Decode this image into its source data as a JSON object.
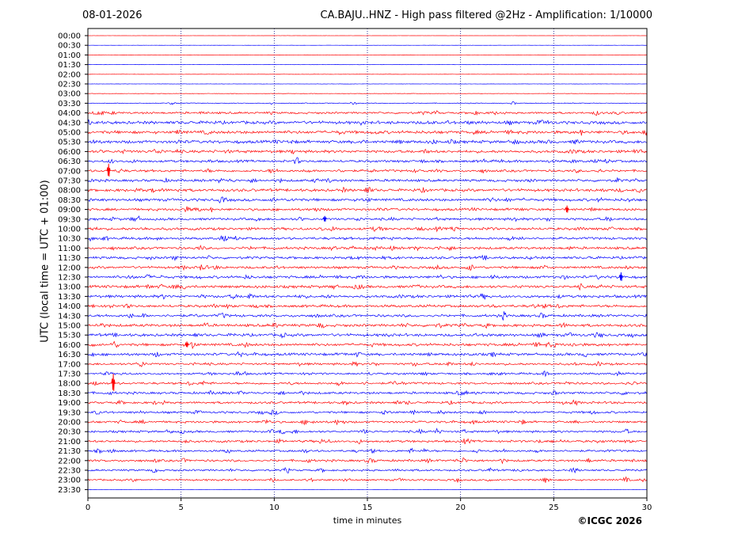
{
  "header": {
    "date": "08-01-2026",
    "title": "CA.BAJU..HNZ - High pass filtered @2Hz - Amplification: 1/10000"
  },
  "footer": {
    "copyright": "©ICGC 2026"
  },
  "colors": {
    "even_row": "#ff0000",
    "odd_row": "#0000ff",
    "grid": "#000080",
    "axis": "#000000"
  },
  "chart_data": {
    "type": "line",
    "xlabel": "time in minutes",
    "ylabel": "UTC (local time = UTC + 01:00)",
    "xlim": [
      0,
      30
    ],
    "xticks": [
      0,
      5,
      10,
      15,
      20,
      25,
      30
    ],
    "grid": "vertical dotted lines at 5-minute intervals",
    "row_labels": [
      "00:00",
      "00:30",
      "01:00",
      "01:30",
      "02:00",
      "02:30",
      "03:00",
      "03:30",
      "04:00",
      "04:30",
      "05:00",
      "05:30",
      "06:00",
      "06:30",
      "07:00",
      "07:30",
      "08:00",
      "08:30",
      "09:00",
      "09:30",
      "10:00",
      "10:30",
      "11:00",
      "11:30",
      "12:00",
      "12:30",
      "13:00",
      "13:30",
      "14:00",
      "14:30",
      "15:00",
      "15:30",
      "16:00",
      "16:30",
      "17:00",
      "17:30",
      "18:00",
      "18:30",
      "19:00",
      "19:30",
      "20:00",
      "20:30",
      "21:00",
      "21:30",
      "22:00",
      "22:30",
      "23:00",
      "23:30"
    ],
    "row_colors": "alternating red (:00) and blue (:30)",
    "noise_level": [
      0.1,
      0.1,
      0.2,
      0.2,
      0.2,
      0.2,
      0.3,
      0.6,
      1.5,
      2.2,
      2.2,
      2.2,
      2.0,
      1.8,
      1.7,
      1.8,
      2.0,
      2.0,
      1.8,
      1.8,
      1.9,
      1.8,
      1.8,
      1.8,
      1.8,
      1.9,
      2.0,
      2.0,
      1.9,
      1.9,
      2.0,
      2.0,
      2.0,
      1.9,
      1.6,
      1.5,
      1.6,
      1.7,
      1.6,
      1.6,
      1.6,
      1.6,
      1.7,
      1.5,
      1.6,
      1.4,
      1.3,
      0.2
    ],
    "spikes": [
      {
        "row": 14,
        "minute": 1.1,
        "amplitude": 9
      },
      {
        "row": 36,
        "minute": 1.35,
        "amplitude": 12
      },
      {
        "row": 25,
        "minute": 28.6,
        "amplitude": 6
      },
      {
        "row": 18,
        "minute": 25.7,
        "amplitude": 5
      },
      {
        "row": 19,
        "minute": 12.7,
        "amplitude": 4
      },
      {
        "row": 32,
        "minute": 5.3,
        "amplitude": 4
      }
    ]
  }
}
